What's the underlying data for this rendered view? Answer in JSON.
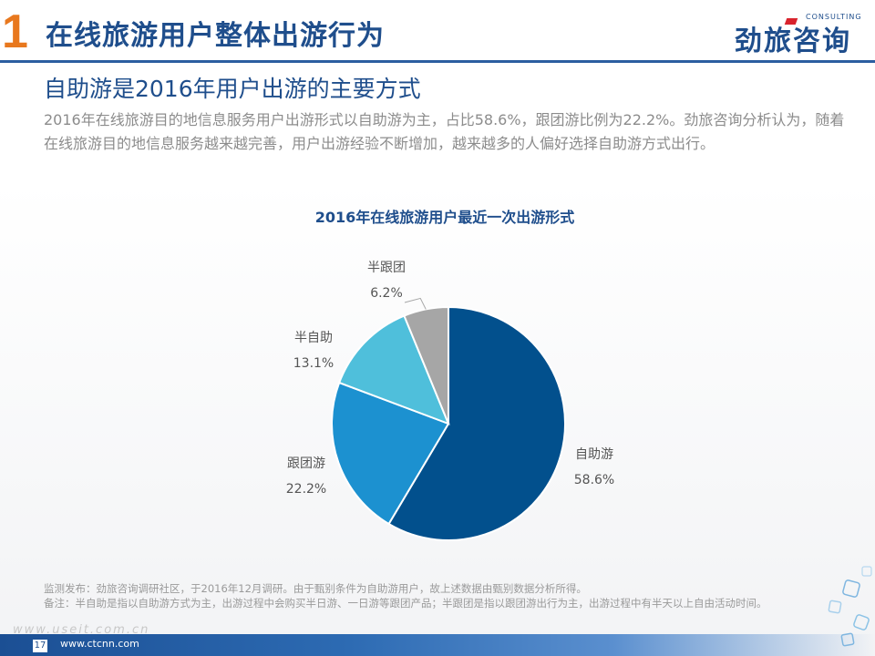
{
  "header": {
    "section_number": "1",
    "title": "在线旅游用户整体出游行为",
    "logo_text": "劲旅咨询",
    "logo_sub": "CONSULTING"
  },
  "subtitle": "自助游是2016年用户出游的主要方式",
  "description": "2016年在线旅游目的地信息服务用户出游形式以自助游为主，占比58.6%，跟团游比例为22.2%。劲旅咨询分析认为，随着在线旅游目的地信息服务越来越完善，用户出游经验不断增加，越来越多的人偏好选择自助游方式出行。",
  "chart_data": {
    "type": "pie",
    "title": "2016年在线旅游用户最近一次出游形式",
    "slices": [
      {
        "name": "自助游",
        "value": 58.6,
        "label": "58.6%",
        "color": "#02508d"
      },
      {
        "name": "跟团游",
        "value": 22.2,
        "label": "22.2%",
        "color": "#1c91d0"
      },
      {
        "name": "半自助",
        "value": 13.1,
        "label": "13.1%",
        "color": "#4fbfdb"
      },
      {
        "name": "半跟团",
        "value": 6.2,
        "label": "6.2%",
        "color": "#a6a6a6"
      }
    ]
  },
  "footnotes": {
    "source": "监测发布：劲旅咨询调研社区，于2016年12月调研。由于甄别条件为自助游用户，故上述数据由甄别数据分析所得。",
    "note": "备注：半自助是指以自助游方式为主，出游过程中会购买半日游、一日游等跟团产品；半跟团是指以跟团游出行为主，出游过程中有半天以上自由活动时间。"
  },
  "footer": {
    "page_number": "17",
    "site": "www.ctcnn.com",
    "watermark": "www.useit.com.cn"
  }
}
